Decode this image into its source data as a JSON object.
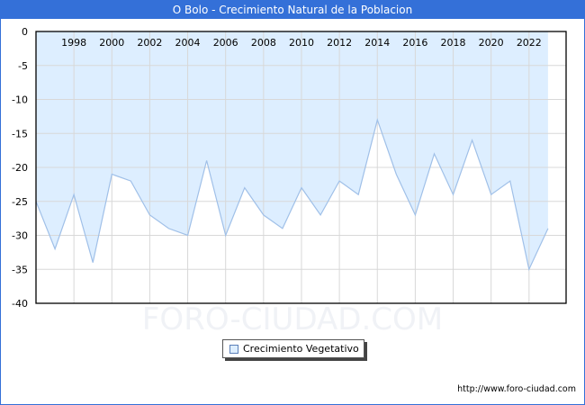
{
  "title": "O Bolo - Crecimiento Natural de la Poblacion",
  "legend": {
    "label": "Crecimiento Vegetativo"
  },
  "footer": {
    "url": "http://www.foro-ciudad.com"
  },
  "watermark": "FORO-CIUDAD.COM",
  "colors": {
    "header": "#3470d8",
    "fill": "#ddeeff",
    "line": "#a0c0e8",
    "grid": "#d8d8d8"
  },
  "chart_data": {
    "type": "area",
    "title": "O Bolo - Crecimiento Natural de la Poblacion",
    "xlabel": "",
    "ylabel": "",
    "ylim": [
      -40,
      0
    ],
    "yticks": [
      0,
      -5,
      -10,
      -15,
      -20,
      -25,
      -30,
      -35,
      -40
    ],
    "xticks": [
      1998,
      2000,
      2002,
      2004,
      2006,
      2008,
      2010,
      2012,
      2014,
      2016,
      2018,
      2020,
      2022
    ],
    "grid": true,
    "legend_position": "bottom",
    "series": [
      {
        "name": "Crecimiento Vegetativo",
        "x": [
          1996,
          1997,
          1998,
          1999,
          2000,
          2001,
          2002,
          2003,
          2004,
          2005,
          2006,
          2007,
          2008,
          2009,
          2010,
          2011,
          2012,
          2013,
          2014,
          2015,
          2016,
          2017,
          2018,
          2019,
          2020,
          2021,
          2022,
          2023
        ],
        "values": [
          -25,
          -32,
          -24,
          -34,
          -21,
          -22,
          -27,
          -29,
          -30,
          -19,
          -30,
          -23,
          -27,
          -29,
          -23,
          -27,
          -22,
          -24,
          -13,
          -21,
          -27,
          -18,
          -24,
          -16,
          -24,
          -22,
          -35,
          -29
        ]
      }
    ]
  }
}
